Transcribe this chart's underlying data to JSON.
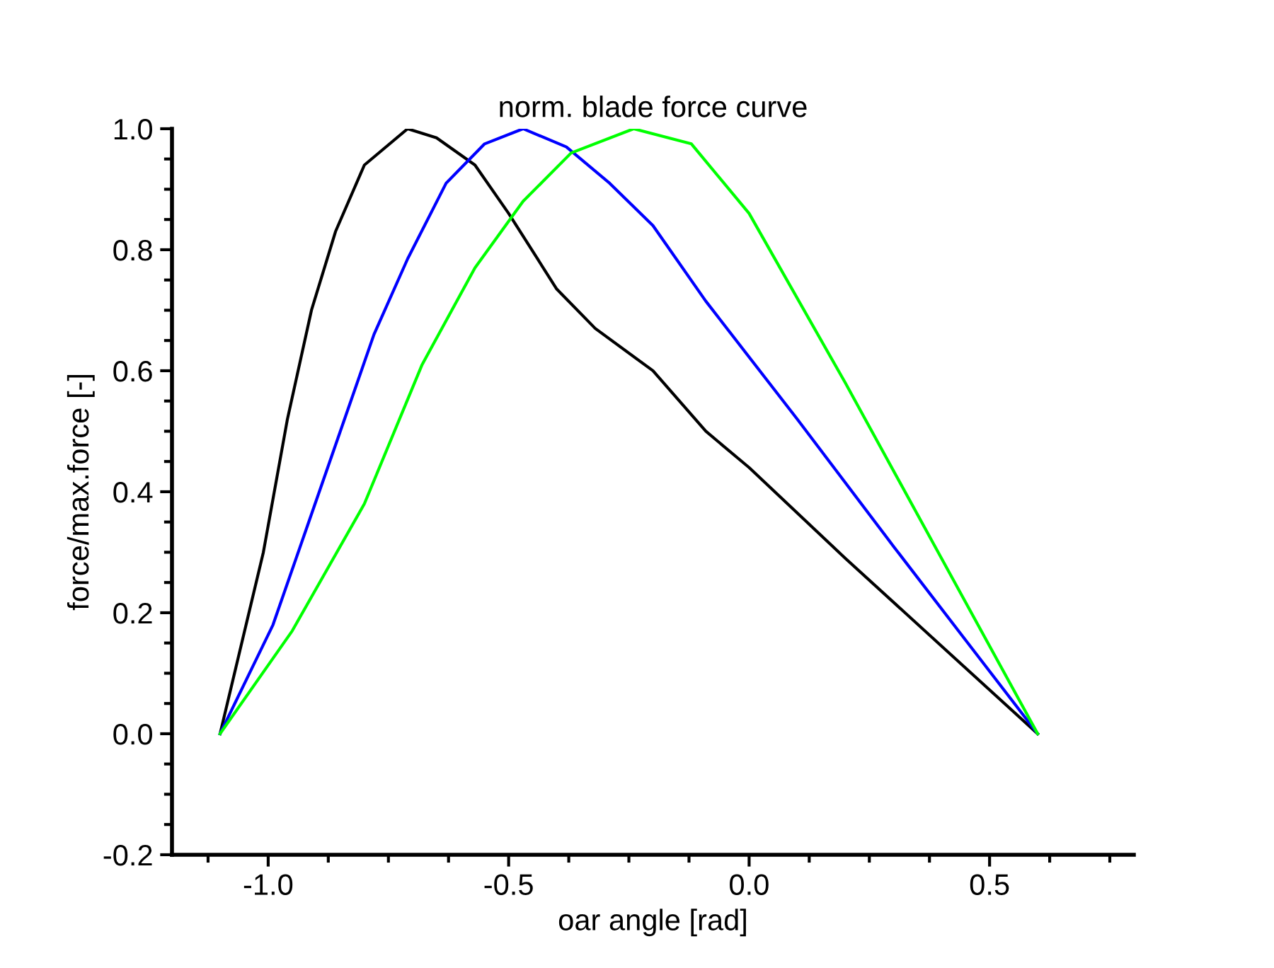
{
  "chart_data": {
    "type": "line",
    "title": "norm. blade force curve",
    "xlabel": "oar angle [rad]",
    "ylabel": "force/max.force [-]",
    "xlim": [
      -1.2,
      0.8
    ],
    "xticks": [
      {
        "value": -1.0,
        "label": "-1.0"
      },
      {
        "value": -0.5,
        "label": "-0.5"
      },
      {
        "value": 0.0,
        "label": "0.0"
      },
      {
        "value": 0.5,
        "label": "0.5"
      }
    ],
    "ylim": [
      -0.2,
      1.0
    ],
    "yticks": [
      {
        "value": -0.2,
        "label": "-0.2"
      },
      {
        "value": 0.0,
        "label": "0.0"
      },
      {
        "value": 0.2,
        "label": "0.2"
      },
      {
        "value": 0.4,
        "label": "0.4"
      },
      {
        "value": 0.6,
        "label": "0.6"
      },
      {
        "value": 0.8,
        "label": "0.8"
      },
      {
        "value": 1.0,
        "label": "1.0"
      }
    ],
    "grid": false,
    "marker": "none",
    "line_style": "solid",
    "series": [
      {
        "color": "#000000",
        "x": [
          -1.1,
          -1.01,
          -0.96,
          -0.91,
          -0.86,
          -0.8,
          -0.71,
          -0.65,
          -0.57,
          -0.5,
          -0.4,
          -0.32,
          -0.2,
          -0.09,
          0.0,
          0.2,
          0.4,
          0.6
        ],
        "values": [
          0,
          0.3,
          0.52,
          0.7,
          0.83,
          0.94,
          1.0,
          0.985,
          0.94,
          0.86,
          0.735,
          0.67,
          0.6,
          0.5,
          0.44,
          0.29,
          0.145,
          0
        ]
      },
      {
        "color": "#0000ff",
        "x": [
          -1.1,
          -0.99,
          -0.92,
          -0.85,
          -0.78,
          -0.71,
          -0.63,
          -0.55,
          -0.47,
          -0.38,
          -0.29,
          -0.2,
          -0.09,
          0.1,
          0.3,
          0.45,
          0.6
        ],
        "values": [
          0,
          0.18,
          0.34,
          0.5,
          0.66,
          0.785,
          0.91,
          0.975,
          1.0,
          0.97,
          0.91,
          0.84,
          0.715,
          0.52,
          0.31,
          0.155,
          0
        ]
      },
      {
        "color": "#00ff00",
        "x": [
          -1.1,
          -0.95,
          -0.8,
          -0.68,
          -0.57,
          -0.47,
          -0.37,
          -0.24,
          -0.12,
          0.0,
          0.2,
          0.4,
          0.6
        ],
        "values": [
          0,
          0.17,
          0.38,
          0.61,
          0.77,
          0.88,
          0.96,
          1.0,
          0.975,
          0.86,
          0.58,
          0.29,
          0
        ]
      }
    ]
  }
}
